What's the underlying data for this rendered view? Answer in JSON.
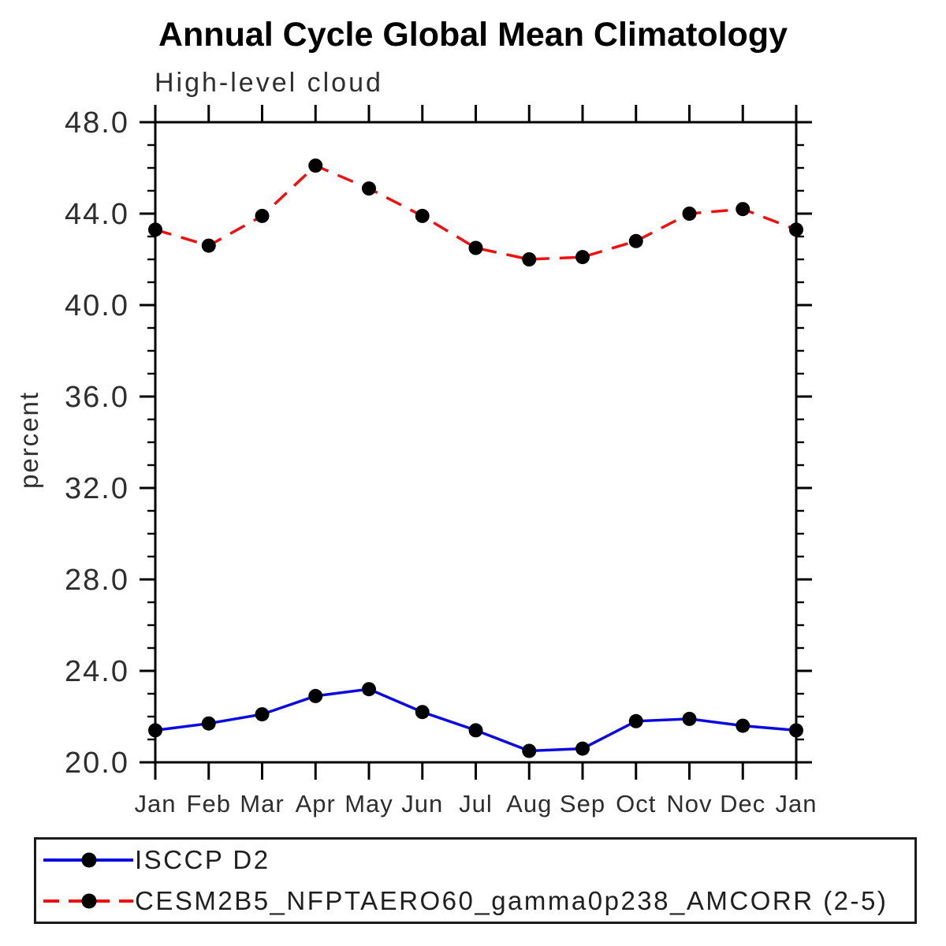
{
  "chart_data": {
    "type": "line",
    "title": "Annual Cycle Global Mean Climatology",
    "subtitle": "High-level cloud",
    "ylabel": "percent",
    "xlabel": "",
    "ylim": [
      20.0,
      48.0
    ],
    "ytick_major": 4.0,
    "ytick_minor": 1.0,
    "ytick_label_format": "one_decimal",
    "grid": false,
    "legend_position": "bottom",
    "frame": "box_with_outward_ticks",
    "categories": [
      "Jan",
      "Feb",
      "Mar",
      "Apr",
      "May",
      "Jun",
      "Jul",
      "Aug",
      "Sep",
      "Oct",
      "Nov",
      "Dec",
      "Jan"
    ],
    "series": [
      {
        "name": "ISCCP D2",
        "color": "#0a0ae0",
        "style": "solid",
        "marker": "circle",
        "marker_color": "#000000",
        "values": [
          21.4,
          21.7,
          22.1,
          22.9,
          23.2,
          22.2,
          21.4,
          20.5,
          20.6,
          21.8,
          21.9,
          21.6,
          21.4
        ]
      },
      {
        "name": "CESM2B5_NFPTAERO60_gamma0p238_AMCORR (2-5)",
        "color": "#ee1010",
        "style": "dashed",
        "marker": "circle",
        "marker_color": "#000000",
        "values": [
          43.3,
          42.6,
          43.9,
          46.1,
          45.1,
          43.9,
          42.5,
          42.0,
          42.1,
          42.8,
          44.0,
          44.2,
          43.3
        ]
      }
    ],
    "axis_color": "#000000",
    "text_color": "#2e2e2e"
  }
}
